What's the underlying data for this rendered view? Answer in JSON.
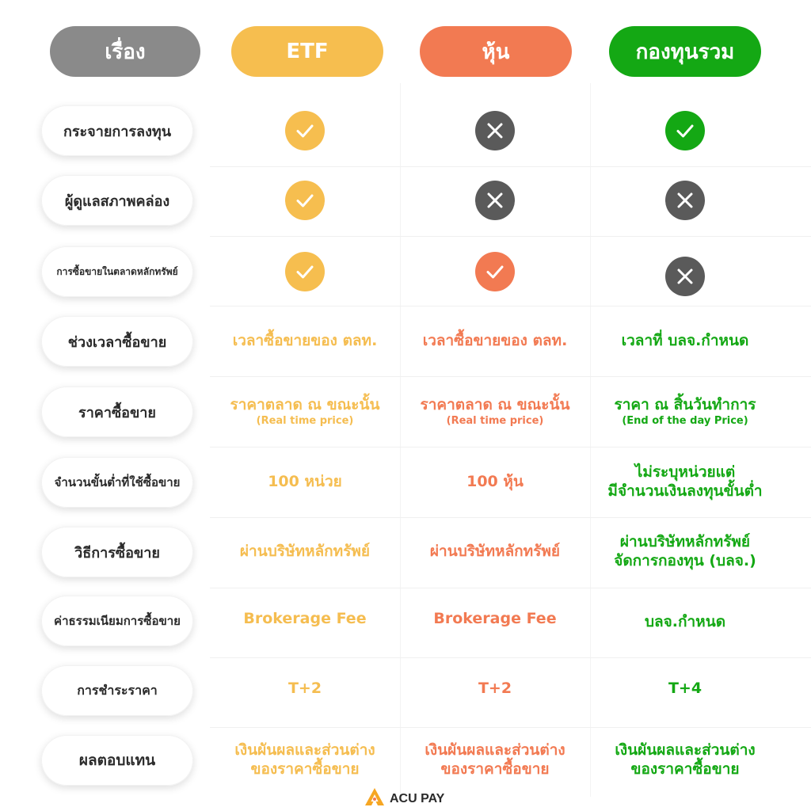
{
  "header": {
    "topic": "เรื่อง",
    "etf": "ETF",
    "stock": "หุ้น",
    "fund": "กองทุนรวม"
  },
  "colors": {
    "topic": "#8a8a8a",
    "etf": "#f6be4f",
    "stock": "#f27a52",
    "fund": "#14a814",
    "cross": "#5a5a5a"
  },
  "rows": [
    {
      "label": "กระจายการลงทุน",
      "etf_icon": "check-icon",
      "stock_icon": "cross-icon",
      "fund_icon": "check-icon"
    },
    {
      "label": "ผู้ดูแลสภาพคล่อง",
      "etf_icon": "check-icon",
      "stock_icon": "cross-icon",
      "fund_icon": "cross-icon"
    },
    {
      "label": "การซื้อขายในตลาดหลักทรัพย์",
      "etf_icon": "check-icon",
      "stock_icon": "check-icon",
      "fund_icon": "cross-icon"
    },
    {
      "label": "ช่วงเวลาซื้อขาย",
      "etf": "เวลาซื้อขายของ ตลท.",
      "stock": "เวลาซื้อขายของ ตลท.",
      "fund": "เวลาที่ บลจ.กำหนด"
    },
    {
      "label": "ราคาซื้อขาย",
      "etf": "ราคาตลาด ณ ขณะนั้น",
      "etf_sub": "(Real time price)",
      "stock": "ราคาตลาด ณ ขณะนั้น",
      "stock_sub": "(Real time price)",
      "fund": "ราคา ณ สิ้นวันทำการ",
      "fund_sub": "(End of the day Price)"
    },
    {
      "label": "จำนวนขั้นต่ำที่ใช้ซื้อขาย",
      "etf": "100 หน่วย",
      "stock": "100 หุ้น",
      "fund": "ไม่ระบุหน่วยแต่",
      "fund_2": "มีจำนวนเงินลงทุนขั้นต่ำ"
    },
    {
      "label": "วิธีการซื้อขาย",
      "etf": "ผ่านบริษัทหลักทรัพย์",
      "stock": "ผ่านบริษัทหลักทรัพย์",
      "fund": "ผ่านบริษัทหลักทรัพย์",
      "fund_2": "จัดการกองทุน (บลจ.)"
    },
    {
      "label": "ค่าธรรมเนียมการซื้อขาย",
      "etf": "Brokerage Fee",
      "stock": "Brokerage Fee",
      "fund": "บลจ.กำหนด"
    },
    {
      "label": "การชำระราคา",
      "etf": "T+2",
      "stock": "T+2",
      "fund": "T+4"
    },
    {
      "label": "ผลตอบแทน",
      "etf": "เงินผันผลและส่วนต่าง",
      "etf_2": "ของราคาซื้อขาย",
      "stock": "เงินผันผลและส่วนต่าง",
      "stock_2": "ของราคาซื้อขาย",
      "fund": "เงินผันผลและส่วนต่าง",
      "fund_2": "ของราคาซื้อขาย"
    }
  ],
  "brand": {
    "name": "ACU PAY",
    "logo_icon": "acu-pay-logo-icon"
  }
}
